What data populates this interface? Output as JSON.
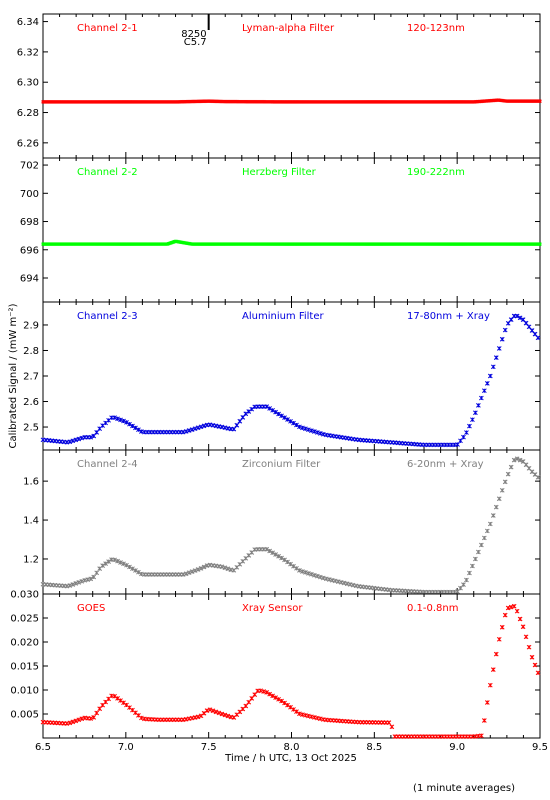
{
  "xlabel": "Time / h UTC, 13 Oct 2025",
  "ylabel": "Calibrated Signal / (mW m⁻²)",
  "footnote": "(1 minute averages)",
  "marker": {
    "code": "8250",
    "class": "C5.7",
    "x": 7.5
  },
  "xlim": [
    6.5,
    9.5
  ],
  "xticks": [
    "6.5",
    "7.0",
    "7.5",
    "8.0",
    "8.5",
    "9.0",
    "9.5"
  ],
  "colors": {
    "red": "#ff0000",
    "green": "#00ff00",
    "blue": "#0000dd",
    "gray": "#808080"
  },
  "chart_data": [
    {
      "type": "scatter",
      "labels": [
        "Channel 2-1",
        "Lyman-alpha Filter",
        "120-123nm"
      ],
      "color": "#ff0000",
      "ylim": [
        6.25,
        6.345
      ],
      "yticks": [
        "6.26",
        "6.28",
        "6.30",
        "6.32",
        "6.34"
      ],
      "x": [
        6.5,
        7.0,
        7.3,
        7.5,
        7.6,
        8.0,
        8.5,
        8.9,
        9.1,
        9.25,
        9.3,
        9.5
      ],
      "y": [
        6.287,
        6.287,
        6.287,
        6.2875,
        6.2872,
        6.287,
        6.287,
        6.287,
        6.287,
        6.2882,
        6.2875,
        6.2875
      ]
    },
    {
      "type": "scatter",
      "labels": [
        "Channel 2-2",
        "Herzberg Filter",
        "190-222nm"
      ],
      "color": "#00ff00",
      "ylim": [
        692.3,
        702.5
      ],
      "yticks": [
        "694",
        "696",
        "698",
        "700",
        "702"
      ],
      "x": [
        6.5,
        7.0,
        7.25,
        7.3,
        7.4,
        8.0,
        8.5,
        8.9,
        9.2,
        9.5
      ],
      "y": [
        696.4,
        696.4,
        696.4,
        696.6,
        696.4,
        696.4,
        696.4,
        696.4,
        696.4,
        696.4
      ]
    },
    {
      "type": "scatter",
      "labels": [
        "Channel 2-3",
        "Aluminium Filter",
        "17-80nm + Xray"
      ],
      "color": "#0000dd",
      "ylim": [
        2.41,
        2.99
      ],
      "yticks": [
        "2.5",
        "2.6",
        "2.7",
        "2.8",
        "2.9"
      ],
      "x": [
        6.5,
        6.65,
        6.75,
        6.8,
        6.85,
        6.92,
        7.0,
        7.1,
        7.2,
        7.35,
        7.45,
        7.5,
        7.58,
        7.65,
        7.72,
        7.78,
        7.85,
        7.95,
        8.05,
        8.2,
        8.4,
        8.6,
        8.8,
        9.0,
        9.05,
        9.1,
        9.15,
        9.2,
        9.25,
        9.3,
        9.35,
        9.4,
        9.45,
        9.5
      ],
      "y": [
        2.45,
        2.44,
        2.46,
        2.46,
        2.5,
        2.54,
        2.52,
        2.48,
        2.48,
        2.48,
        2.5,
        2.51,
        2.5,
        2.49,
        2.55,
        2.58,
        2.58,
        2.54,
        2.5,
        2.47,
        2.45,
        2.44,
        2.43,
        2.43,
        2.47,
        2.54,
        2.62,
        2.7,
        2.8,
        2.9,
        2.94,
        2.92,
        2.88,
        2.84
      ]
    },
    {
      "type": "scatter",
      "labels": [
        "Channel 2-4",
        "Zirconium Filter",
        "6-20nm + Xray"
      ],
      "color": "#808080",
      "ylim": [
        1.02,
        1.76
      ],
      "yticks": [
        "1.2",
        "1.4",
        "1.6"
      ],
      "x": [
        6.5,
        6.65,
        6.75,
        6.8,
        6.85,
        6.92,
        7.0,
        7.1,
        7.2,
        7.35,
        7.45,
        7.5,
        7.58,
        7.65,
        7.72,
        7.78,
        7.85,
        7.95,
        8.05,
        8.2,
        8.4,
        8.6,
        8.8,
        9.0,
        9.05,
        9.1,
        9.15,
        9.2,
        9.25,
        9.3,
        9.35,
        9.4,
        9.45,
        9.5
      ],
      "y": [
        1.07,
        1.06,
        1.09,
        1.1,
        1.16,
        1.2,
        1.17,
        1.12,
        1.12,
        1.12,
        1.15,
        1.17,
        1.16,
        1.14,
        1.2,
        1.25,
        1.25,
        1.2,
        1.14,
        1.1,
        1.06,
        1.04,
        1.03,
        1.03,
        1.08,
        1.18,
        1.28,
        1.38,
        1.5,
        1.62,
        1.72,
        1.7,
        1.65,
        1.61
      ]
    },
    {
      "type": "scatter",
      "labels": [
        "GOES",
        "Xray Sensor",
        "0.1-0.8nm"
      ],
      "color": "#ff0000",
      "ylim": [
        0.0,
        0.03
      ],
      "yticks": [
        "0.005",
        "0.010",
        "0.015",
        "0.020",
        "0.025",
        "0.030"
      ],
      "x": [
        6.5,
        6.65,
        6.75,
        6.8,
        6.85,
        6.92,
        7.0,
        7.1,
        7.2,
        7.35,
        7.45,
        7.5,
        7.58,
        7.65,
        7.72,
        7.8,
        7.85,
        7.95,
        8.05,
        8.2,
        8.4,
        8.6,
        8.62,
        8.7,
        8.9,
        9.0,
        9.1,
        9.15,
        9.17,
        9.2,
        9.25,
        9.3,
        9.35,
        9.4,
        9.45,
        9.5
      ],
      "y": [
        0.0033,
        0.003,
        0.0042,
        0.004,
        0.0065,
        0.009,
        0.007,
        0.004,
        0.0038,
        0.0038,
        0.0045,
        0.006,
        0.005,
        0.0042,
        0.0065,
        0.01,
        0.0095,
        0.0075,
        0.005,
        0.0038,
        0.0033,
        0.0032,
        0.0003,
        0.0003,
        0.0003,
        0.0003,
        0.0003,
        0.0005,
        0.005,
        0.011,
        0.02,
        0.027,
        0.0275,
        0.023,
        0.017,
        0.0125
      ]
    }
  ]
}
